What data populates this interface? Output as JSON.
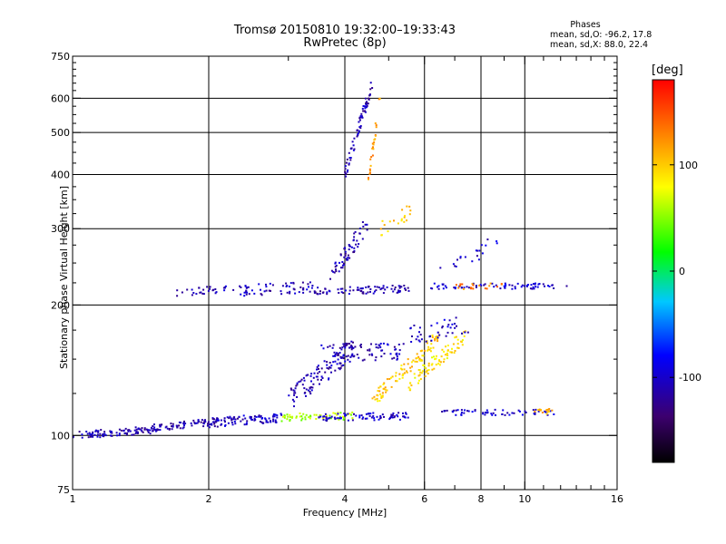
{
  "title": {
    "line1": "Tromsø 20150810 19:32:00–19:33:43",
    "line2": "RwPretec (8p)"
  },
  "phases_box": {
    "title": "Phases",
    "o_mode": "mean, sd,O:  -96.2, 17.8",
    "x_mode": "mean, sd,X:  88.0, 22.4"
  },
  "chart_data": {
    "type": "scatter",
    "title": "Tromsø 20150810 19:32:00–19:33:43 RwPretec (8p)",
    "xlabel": "Frequency [MHz]",
    "ylabel": "Stationary phase Virtual Height [km]",
    "x_scale": "log",
    "y_scale": "log",
    "xlim": [
      1,
      16
    ],
    "ylim": [
      75,
      750
    ],
    "x_ticks": [
      1,
      2,
      4,
      6,
      8,
      10,
      16
    ],
    "x_tick_labels": [
      "1",
      "2",
      "4",
      "6",
      "8",
      "10",
      "16"
    ],
    "y_ticks": [
      75,
      100,
      200,
      300,
      400,
      500,
      600,
      750
    ],
    "y_tick_labels": [
      "75",
      "100",
      "200",
      "300",
      "400",
      "500",
      "600",
      "750"
    ],
    "grid": true,
    "colorbar": {
      "label": "[deg]",
      "range": [
        -180,
        180
      ],
      "tick_values": [
        100,
        0,
        -100
      ],
      "tick_labels": [
        "100",
        "0",
        "-100"
      ],
      "colormap": "rainbow (black-purple-blue-cyan-green-yellow-red)"
    },
    "series": [
      {
        "segments": [
          {
            "x0": 1.0,
            "x1": 1.5,
            "y0": 100,
            "y1": 103,
            "phase": -110,
            "n": 90,
            "scatter": 0.02
          },
          {
            "x0": 1.5,
            "x1": 2.1,
            "y0": 104,
            "y1": 108,
            "phase": -110,
            "n": 80,
            "scatter": 0.02
          },
          {
            "x0": 2.0,
            "x1": 2.9,
            "y0": 107,
            "y1": 110,
            "phase": -105,
            "n": 90,
            "scatter": 0.025
          },
          {
            "x0": 2.9,
            "x1": 4.2,
            "y0": 110,
            "y1": 111,
            "phase": 60,
            "n": 60,
            "scatter": 0.02
          },
          {
            "x0": 3.5,
            "x1": 5.6,
            "y0": 110,
            "y1": 111,
            "phase": -100,
            "n": 80,
            "scatter": 0.02
          },
          {
            "x0": 6.5,
            "x1": 11.6,
            "y0": 113,
            "y1": 113,
            "phase": -100,
            "n": 60,
            "scatter": 0.015
          },
          {
            "x0": 10.5,
            "x1": 11.5,
            "y0": 113,
            "y1": 114,
            "phase": 110,
            "n": 15,
            "scatter": 0.015
          },
          {
            "x0": 1.7,
            "x1": 2.3,
            "y0": 214,
            "y1": 218,
            "phase": -110,
            "n": 30,
            "scatter": 0.02
          },
          {
            "x0": 2.3,
            "x1": 3.4,
            "y0": 216,
            "y1": 220,
            "phase": -105,
            "n": 60,
            "scatter": 0.03
          },
          {
            "x0": 3.4,
            "x1": 5.6,
            "y0": 215,
            "y1": 218,
            "phase": -110,
            "n": 80,
            "scatter": 0.02
          },
          {
            "x0": 6.2,
            "x1": 12.4,
            "y0": 221,
            "y1": 221,
            "phase": -100,
            "n": 70,
            "scatter": 0.015
          },
          {
            "x0": 7.0,
            "x1": 9.0,
            "y0": 221,
            "y1": 221,
            "phase": 130,
            "n": 20,
            "scatter": 0.015
          },
          {
            "x0": 3.0,
            "x1": 4.2,
            "y0": 120,
            "y1": 160,
            "phase": -110,
            "n": 120,
            "scatter": 0.06
          },
          {
            "x0": 3.5,
            "x1": 5.5,
            "y0": 160,
            "y1": 160,
            "phase": -110,
            "n": 40,
            "scatter": 0.02
          },
          {
            "x0": 3.6,
            "x1": 5.3,
            "y0": 150,
            "y1": 152,
            "phase": -105,
            "n": 30,
            "scatter": 0.02
          },
          {
            "x0": 3.7,
            "x1": 4.5,
            "y0": 230,
            "y1": 310,
            "phase": -110,
            "n": 60,
            "scatter": 0.05
          },
          {
            "x0": 4.0,
            "x1": 4.6,
            "y0": 400,
            "y1": 650,
            "phase": -110,
            "n": 70,
            "scatter": 0.04
          },
          {
            "x0": 4.5,
            "x1": 4.8,
            "y0": 380,
            "y1": 620,
            "phase": 120,
            "n": 25,
            "scatter": 0.04
          },
          {
            "x0": 4.6,
            "x1": 6.5,
            "y0": 120,
            "y1": 170,
            "phase": 100,
            "n": 100,
            "scatter": 0.04
          },
          {
            "x0": 5.5,
            "x1": 7.4,
            "y0": 130,
            "y1": 170,
            "phase": 90,
            "n": 80,
            "scatter": 0.04
          },
          {
            "x0": 5.5,
            "x1": 7.5,
            "y0": 170,
            "y1": 180,
            "phase": -100,
            "n": 40,
            "scatter": 0.05
          },
          {
            "x0": 4.8,
            "x1": 5.6,
            "y0": 300,
            "y1": 330,
            "phase": 100,
            "n": 20,
            "scatter": 0.04
          },
          {
            "x0": 6.5,
            "x1": 8.8,
            "y0": 240,
            "y1": 280,
            "phase": -100,
            "n": 20,
            "scatter": 0.05
          }
        ]
      }
    ]
  }
}
